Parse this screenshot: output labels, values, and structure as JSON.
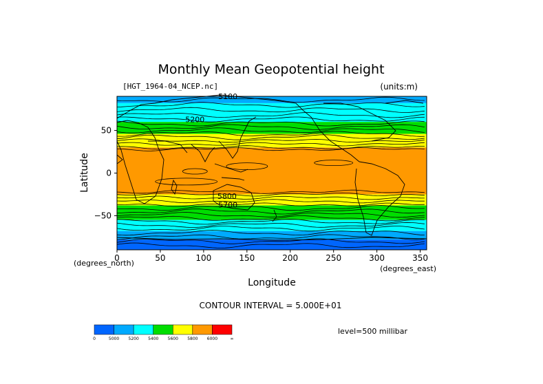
{
  "chart_data": {
    "type": "heatmap",
    "title": "Monthly Mean Geopotential height",
    "file_label": "[HGT_1964-04_NCEP.nc]",
    "units_label": "(units:m)",
    "xlabel": "Longitude",
    "ylabel": "Latitude",
    "x_units": "(degrees_east)",
    "y_units": "(degrees_north)",
    "xlim": [
      0,
      357.5
    ],
    "ylim": [
      -90,
      90
    ],
    "x_ticks": [
      {
        "value": 0,
        "label": "0"
      },
      {
        "value": 50,
        "label": "50"
      },
      {
        "value": 100,
        "label": "100"
      },
      {
        "value": 150,
        "label": "150"
      },
      {
        "value": 200,
        "label": "200"
      },
      {
        "value": 250,
        "label": "250"
      },
      {
        "value": 300,
        "label": "300"
      },
      {
        "value": 350,
        "label": "350"
      }
    ],
    "y_ticks": [
      {
        "value": 50,
        "label": "50"
      },
      {
        "value": 0,
        "label": "0"
      },
      {
        "value": -50,
        "label": "−50"
      }
    ],
    "contour_interval_text": "CONTOUR INTERVAL = 5.000E+01",
    "level_text": "level=500 millibar",
    "contour_labels": [
      {
        "text": "5100",
        "lon": 128,
        "lat": 90
      },
      {
        "text": "5200",
        "lon": 90,
        "lat": 63
      },
      {
        "text": "5800",
        "lon": 127,
        "lat": -27
      },
      {
        "text": "5700",
        "lon": 128,
        "lat": -37
      }
    ],
    "colorbar": {
      "labels": [
        "0",
        "5000",
        "5200",
        "5400",
        "5600",
        "5800",
        "6000",
        "∞"
      ],
      "colors": [
        "#0066ff",
        "#00aaff",
        "#00ffff",
        "#00dd00",
        "#ffff00",
        "#ff9900",
        "#ff0000"
      ]
    },
    "bands": [
      {
        "lat_top": 90,
        "lat_bottom": 82,
        "color": "#00aaff"
      },
      {
        "lat_top": 82,
        "lat_bottom": 60,
        "color": "#00ffff"
      },
      {
        "lat_top": 60,
        "lat_bottom": 46,
        "color": "#00dd00"
      },
      {
        "lat_top": 46,
        "lat_bottom": 30,
        "color": "#ffff00"
      },
      {
        "lat_top": 30,
        "lat_bottom": -25,
        "color": "#ff9900"
      },
      {
        "lat_top": -25,
        "lat_bottom": -38,
        "color": "#ffff00"
      },
      {
        "lat_top": -38,
        "lat_bottom": -55,
        "color": "#00dd00"
      },
      {
        "lat_top": -55,
        "lat_bottom": -68,
        "color": "#00ffff"
      },
      {
        "lat_top": -68,
        "lat_bottom": -78,
        "color": "#00aaff"
      },
      {
        "lat_top": -78,
        "lat_bottom": -90,
        "color": "#0066ff"
      }
    ]
  }
}
